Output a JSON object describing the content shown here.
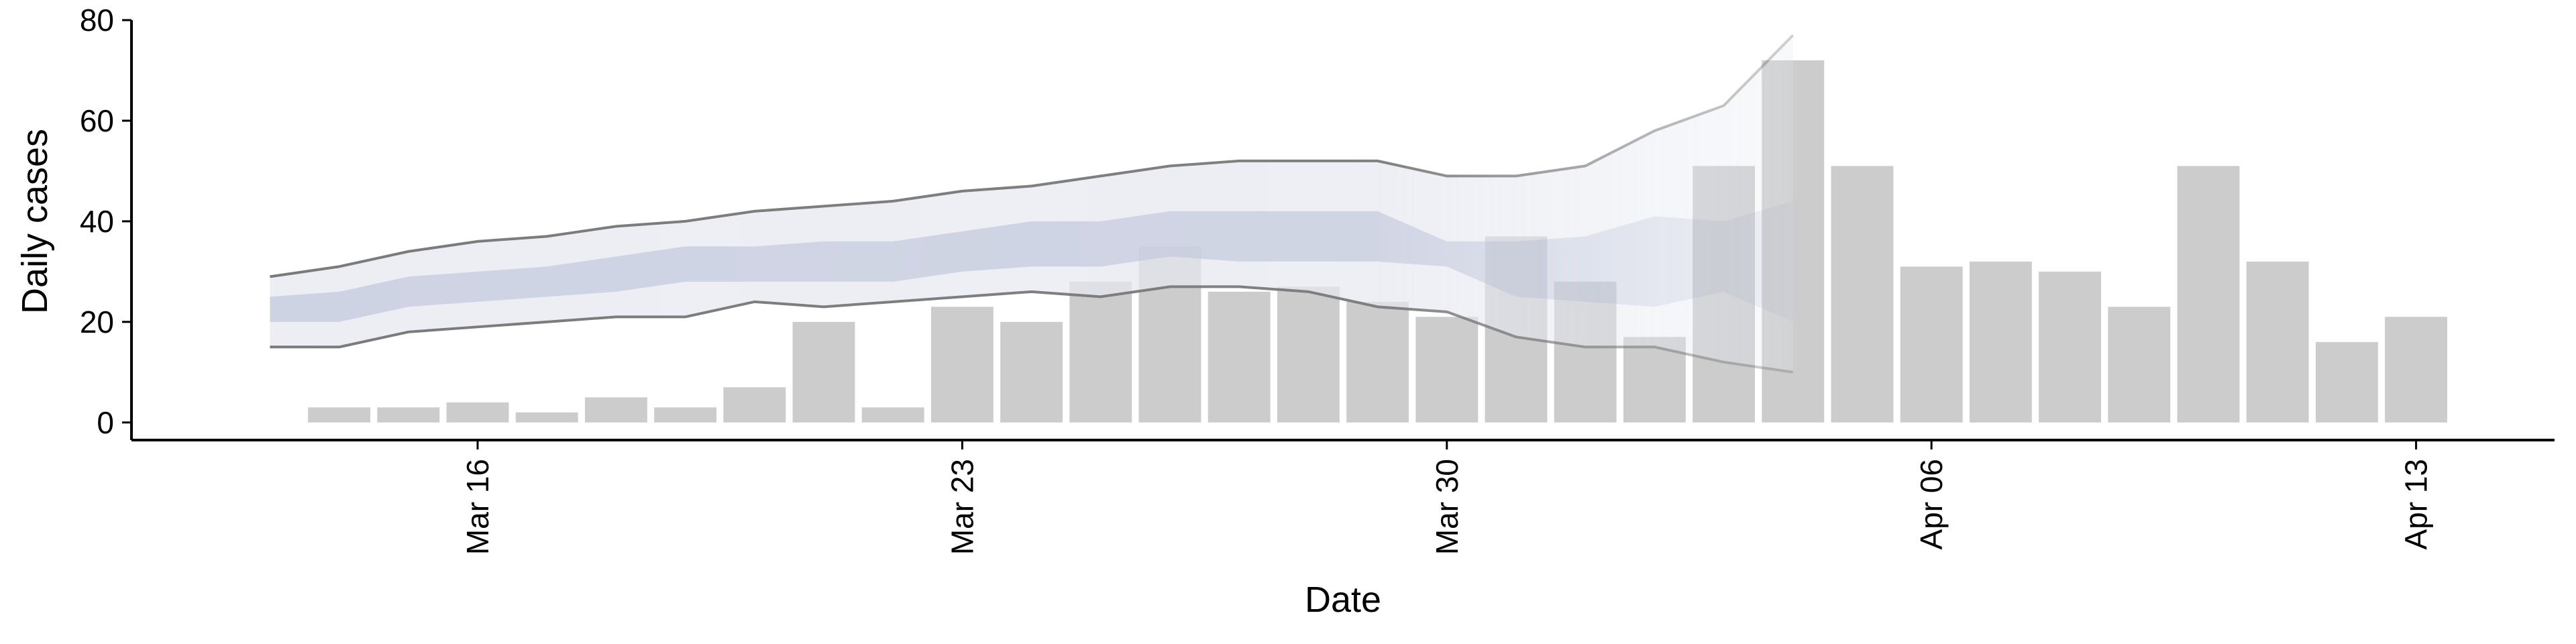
{
  "chart_data": {
    "type": "bar",
    "x_label": "Date",
    "y_label": "Daily cases",
    "categories": [
      "Mar 14",
      "Mar 15",
      "Mar 16",
      "Mar 17",
      "Mar 18",
      "Mar 19",
      "Mar 20",
      "Mar 21",
      "Mar 22",
      "Mar 23",
      "Mar 24",
      "Mar 25",
      "Mar 26",
      "Mar 27",
      "Mar 28",
      "Mar 29",
      "Mar 30",
      "Mar 31",
      "Apr 01",
      "Apr 02",
      "Apr 03",
      "Apr 04",
      "Apr 05",
      "Apr 06",
      "Apr 07",
      "Apr 08",
      "Apr 09",
      "Apr 10",
      "Apr 11",
      "Apr 12",
      "Apr 13"
    ],
    "values": [
      3,
      3,
      4,
      2,
      5,
      3,
      7,
      20,
      3,
      23,
      20,
      28,
      35,
      26,
      27,
      24,
      21,
      37,
      28,
      17,
      51,
      72,
      51,
      31,
      32,
      30,
      23,
      51,
      32,
      16,
      21
    ],
    "color": "#cccccc",
    "band": {
      "x": [
        "Mar 13",
        "Mar 14",
        "Mar 15",
        "Mar 16",
        "Mar 17",
        "Mar 18",
        "Mar 19",
        "Mar 20",
        "Mar 21",
        "Mar 22",
        "Mar 23",
        "Mar 24",
        "Mar 25",
        "Mar 26",
        "Mar 27",
        "Mar 28",
        "Mar 29",
        "Mar 30",
        "Mar 31",
        "Apr 01",
        "Apr 02",
        "Apr 03",
        "Apr 04"
      ],
      "outer_upper": [
        29,
        31,
        34,
        36,
        37,
        39,
        40,
        42,
        43,
        44,
        46,
        47,
        49,
        51,
        52,
        52,
        52,
        49,
        49,
        51,
        58,
        63,
        77
      ],
      "outer_lower": [
        15,
        15,
        18,
        19,
        20,
        21,
        21,
        24,
        23,
        24,
        25,
        26,
        25,
        27,
        27,
        26,
        23,
        22,
        17,
        15,
        15,
        12,
        10
      ],
      "inner_upper": [
        25,
        26,
        29,
        30,
        31,
        33,
        35,
        35,
        36,
        36,
        38,
        40,
        40,
        42,
        42,
        42,
        42,
        36,
        36,
        37,
        41,
        40,
        44
      ],
      "inner_lower": [
        20,
        20,
        23,
        24,
        25,
        26,
        28,
        28,
        28,
        28,
        30,
        31,
        31,
        33,
        32,
        32,
        32,
        31,
        25,
        24,
        23,
        26,
        20
      ],
      "outer_color": "#e6e8f0",
      "inner_color": "#c4cadd",
      "line_color": "#7a7a7a"
    },
    "xlim": [
      "Mar 11",
      "Apr 15"
    ],
    "xticks": [
      "Mar 16",
      "Mar 23",
      "Mar 30",
      "Apr 06",
      "Apr 13"
    ],
    "ylim": [
      -3.5,
      80
    ],
    "yticks": [
      0,
      20,
      40,
      60,
      80
    ]
  }
}
